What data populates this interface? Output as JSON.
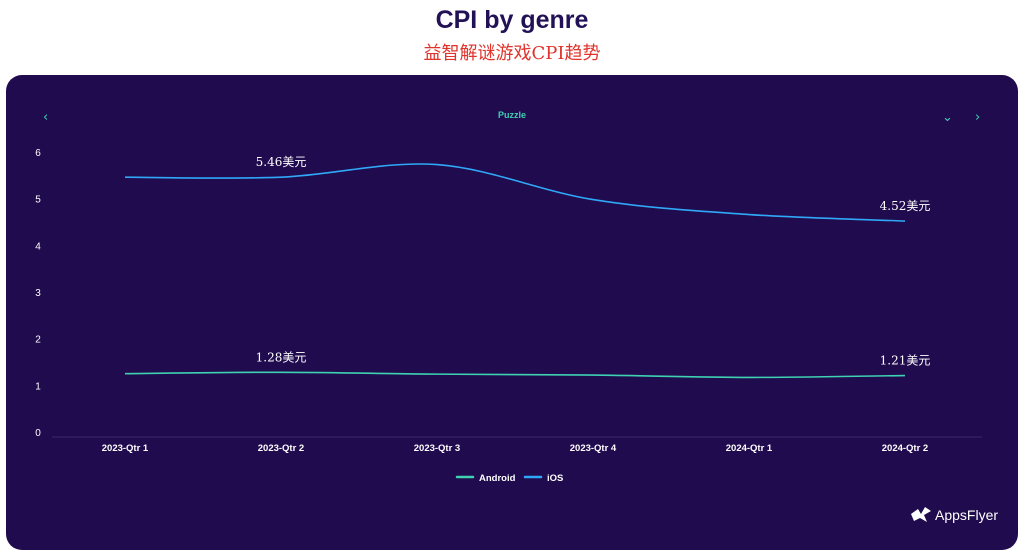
{
  "header": {
    "title": "CPI by genre",
    "subtitle": "益智解谜游戏CPI趋势"
  },
  "filter": {
    "genre": "Puzzle",
    "prev_icon": "chevron-left-icon",
    "dropdown_icon": "chevron-down-icon",
    "next_icon": "chevron-right-icon"
  },
  "chart_data": {
    "type": "line",
    "x": [
      "2023-Qtr 1",
      "2023-Qtr 2",
      "2023-Qtr 3",
      "2023-Qtr 4",
      "2024-Qtr 1",
      "2024-Qtr 2"
    ],
    "ylim": [
      0,
      6
    ],
    "yticks": [
      0,
      1,
      2,
      3,
      4,
      5,
      6
    ],
    "grid": false,
    "legend": "bottom",
    "series": [
      {
        "name": "Android",
        "color": "#3ed1b2",
        "values": [
          1.25,
          1.28,
          1.24,
          1.22,
          1.17,
          1.21
        ]
      },
      {
        "name": "iOS",
        "color": "#2fa8f7",
        "values": [
          5.46,
          5.46,
          5.73,
          4.98,
          4.66,
          4.52
        ]
      }
    ],
    "annotations": [
      {
        "series": "iOS",
        "x": "2023-Qtr 2",
        "text": "5.46美元"
      },
      {
        "series": "iOS",
        "x": "2024-Qtr 2",
        "text": "4.52美元"
      },
      {
        "series": "Android",
        "x": "2023-Qtr 2",
        "text": "1.28美元"
      },
      {
        "series": "Android",
        "x": "2024-Qtr 2",
        "text": "1.21美元"
      }
    ]
  },
  "brand": {
    "name": "AppsFlyer"
  }
}
